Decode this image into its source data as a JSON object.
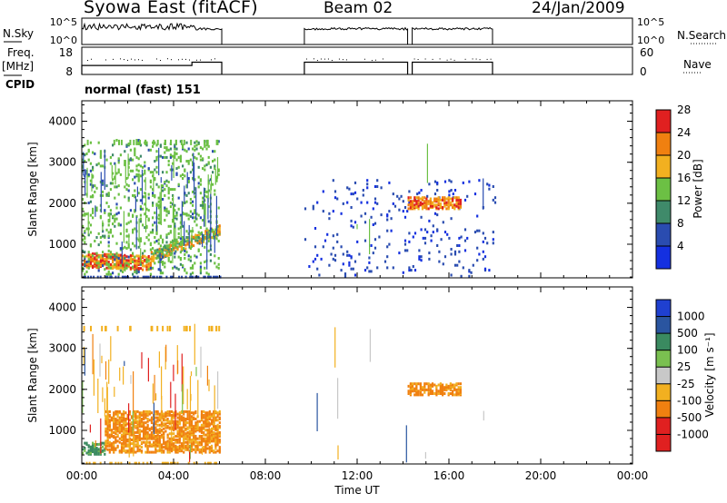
{
  "header": {
    "station": "Syowa East (fitACF)",
    "beam": "Beam 02",
    "date": "24/Jan/2009"
  },
  "side_labels": {
    "nsky": "N.Sky",
    "freq": "Freq.",
    "mhz": "[MHz]",
    "cpid": "CPID",
    "nsearch": "N.Search",
    "nave": "Nave"
  },
  "cpid_mode": "normal (fast) 151",
  "chart_data": [
    {
      "type": "line",
      "panel": "noise",
      "left_axis_ticks": [
        "10^5",
        "10^0"
      ],
      "right_axis_ticks": [
        "10^5",
        "10^0"
      ],
      "operating_intervals_ut_hours": [
        [
          0.0,
          6.1
        ],
        [
          9.7,
          14.2
        ],
        [
          14.4,
          17.9
        ]
      ]
    },
    {
      "type": "line",
      "panel": "frequency",
      "left_axis_ticks": [
        18,
        8
      ],
      "right_axis_ticks": [
        60,
        0
      ],
      "operating_intervals_ut_hours": [
        [
          0.0,
          6.1
        ],
        [
          9.7,
          14.2
        ],
        [
          14.4,
          17.9
        ]
      ],
      "frequency_mhz_segments": [
        [
          0.0,
          4.8,
          11.3
        ],
        [
          4.8,
          6.1,
          12.5
        ],
        [
          9.7,
          14.2,
          12.5
        ],
        [
          14.4,
          17.9,
          12.5
        ]
      ]
    },
    {
      "type": "heatmap",
      "panel": "power",
      "ylabel": "Slant Range [km]",
      "ylim": [
        180,
        4500
      ],
      "yticks": [
        1000,
        2000,
        3000,
        4000
      ],
      "colorbar_label": "Power [dB]",
      "colorbar_ticks": [
        4,
        8,
        12,
        16,
        20,
        24,
        28
      ],
      "colorbar_colors": [
        "#1430e0",
        "#2a4cb0",
        "#3f8a6a",
        "#6cc044",
        "#f2b020",
        "#f08010",
        "#e02020"
      ],
      "regions": [
        {
          "t": [
            0.0,
            3.0
          ],
          "range": [
            450,
            850
          ],
          "level": "orange"
        },
        {
          "t": [
            3.0,
            6.0
          ],
          "range": [
            600,
            1500
          ],
          "level": "green-orange"
        },
        {
          "t": [
            0.0,
            6.0
          ],
          "range": [
            300,
            3600
          ],
          "level": "scatter-green"
        },
        {
          "t": [
            9.7,
            18.0
          ],
          "range": [
            250,
            2600
          ],
          "level": "scatter-blue"
        },
        {
          "t": [
            14.2,
            16.5
          ],
          "range": [
            1900,
            2200
          ],
          "level": "orange"
        }
      ]
    },
    {
      "type": "heatmap",
      "panel": "velocity",
      "ylabel": "Slant Range [km]",
      "ylim": [
        180,
        4500
      ],
      "yticks": [
        1000,
        2000,
        3000,
        4000
      ],
      "xlabel": "Time UT",
      "xticks": [
        "00:00",
        "04:00",
        "08:00",
        "12:00",
        "16:00",
        "20:00",
        "00:00"
      ],
      "xlim_hours": [
        0,
        24
      ],
      "colorbar_label": "Velocity [m s⁻¹]",
      "colorbar_ticks": [
        1000,
        500,
        100,
        25,
        -25,
        -100,
        -500,
        -1000
      ],
      "colorbar_colors": [
        "#1f40d0",
        "#2a55a0",
        "#3a8a60",
        "#7ac050",
        "#c8c8c8",
        "#f2b020",
        "#f08010",
        "#e02020"
      ],
      "regions": [
        {
          "t": [
            0.0,
            1.0
          ],
          "range": [
            450,
            750
          ],
          "level": "green"
        },
        {
          "t": [
            1.0,
            6.0
          ],
          "range": [
            500,
            1500
          ],
          "level": "orange"
        },
        {
          "t": [
            14.2,
            16.5
          ],
          "range": [
            1900,
            2200
          ],
          "level": "orange"
        }
      ]
    }
  ]
}
